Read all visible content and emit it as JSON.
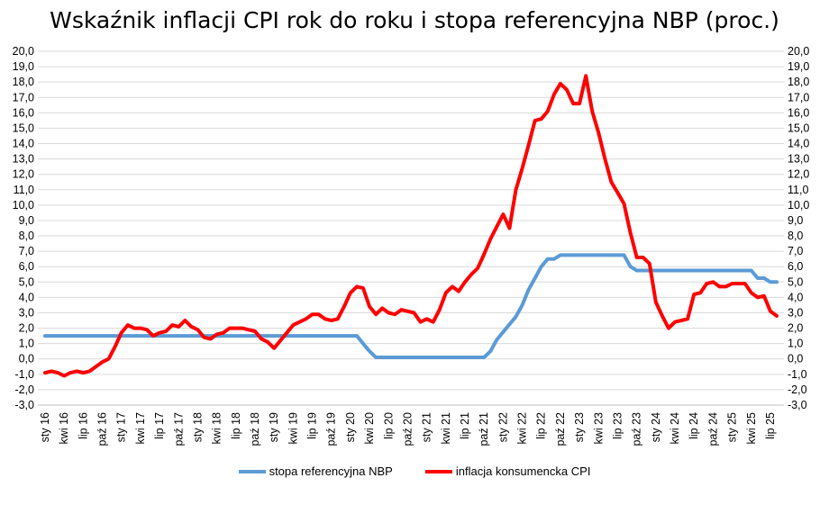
{
  "chart_data": {
    "type": "line",
    "title": "Wskaźnik inflacji CPI rok do roku i stopa referencyjna NBP (proc.)",
    "xlabel": "",
    "ylabel": "",
    "ylim": [
      -3.0,
      20.0
    ],
    "ytick_step": 1.0,
    "y_tick_labels": [
      "-3,0",
      "-2,0",
      "-1,0",
      "0,0",
      "1,0",
      "2,0",
      "3,0",
      "4,0",
      "5,0",
      "6,0",
      "7,0",
      "8,0",
      "9,0",
      "10,0",
      "11,0",
      "12,0",
      "13,0",
      "14,0",
      "15,0",
      "16,0",
      "17,0",
      "18,0",
      "19,0",
      "20,0"
    ],
    "grid": true,
    "dual_y_axis_labels": true,
    "legend_position": "bottom",
    "x": [
      "2016-01",
      "2016-02",
      "2016-03",
      "2016-04",
      "2016-05",
      "2016-06",
      "2016-07",
      "2016-08",
      "2016-09",
      "2016-10",
      "2016-11",
      "2016-12",
      "2017-01",
      "2017-02",
      "2017-03",
      "2017-04",
      "2017-05",
      "2017-06",
      "2017-07",
      "2017-08",
      "2017-09",
      "2017-10",
      "2017-11",
      "2017-12",
      "2018-01",
      "2018-02",
      "2018-03",
      "2018-04",
      "2018-05",
      "2018-06",
      "2018-07",
      "2018-08",
      "2018-09",
      "2018-10",
      "2018-11",
      "2018-12",
      "2019-01",
      "2019-02",
      "2019-03",
      "2019-04",
      "2019-05",
      "2019-06",
      "2019-07",
      "2019-08",
      "2019-09",
      "2019-10",
      "2019-11",
      "2019-12",
      "2020-01",
      "2020-02",
      "2020-03",
      "2020-04",
      "2020-05",
      "2020-06",
      "2020-07",
      "2020-08",
      "2020-09",
      "2020-10",
      "2020-11",
      "2020-12",
      "2021-01",
      "2021-02",
      "2021-03",
      "2021-04",
      "2021-05",
      "2021-06",
      "2021-07",
      "2021-08",
      "2021-09",
      "2021-10",
      "2021-11",
      "2021-12",
      "2022-01",
      "2022-02",
      "2022-03",
      "2022-04",
      "2022-05",
      "2022-06",
      "2022-07",
      "2022-08",
      "2022-09",
      "2022-10",
      "2022-11",
      "2022-12",
      "2023-01",
      "2023-02",
      "2023-03",
      "2023-04",
      "2023-05",
      "2023-06",
      "2023-07",
      "2023-08",
      "2023-09",
      "2023-10",
      "2023-11",
      "2023-12",
      "2024-01",
      "2024-02",
      "2024-03",
      "2024-04",
      "2024-05",
      "2024-06",
      "2024-07",
      "2024-08",
      "2024-09",
      "2024-10",
      "2024-11",
      "2024-12",
      "2025-01",
      "2025-02",
      "2025-03",
      "2025-04",
      "2025-05",
      "2025-06",
      "2025-07",
      "2025-08"
    ],
    "x_tick_labels": [
      "sty 16",
      "kwi 16",
      "lip 16",
      "paź 16",
      "sty 17",
      "kwi 17",
      "lip 17",
      "paź 17",
      "sty 18",
      "kwi 18",
      "lip 18",
      "paź 18",
      "sty 19",
      "kwi 19",
      "lip 19",
      "paź 19",
      "sty 20",
      "kwi 20",
      "lip 20",
      "paź 20",
      "sty 21",
      "kwi 21",
      "lip 21",
      "paź 21",
      "sty 22",
      "kwi 22",
      "lip 22",
      "paź 22",
      "sty 23",
      "kwi 23",
      "lip 23",
      "paź 23",
      "sty 24",
      "kwi 24",
      "lip 24",
      "paź 24",
      "sty 25",
      "kwi 25",
      "lip 25"
    ],
    "x_tick_every": 3,
    "series": [
      {
        "name": "stopa referencyjna NBP",
        "color": "#5b9bd5",
        "values": [
          1.5,
          1.5,
          1.5,
          1.5,
          1.5,
          1.5,
          1.5,
          1.5,
          1.5,
          1.5,
          1.5,
          1.5,
          1.5,
          1.5,
          1.5,
          1.5,
          1.5,
          1.5,
          1.5,
          1.5,
          1.5,
          1.5,
          1.5,
          1.5,
          1.5,
          1.5,
          1.5,
          1.5,
          1.5,
          1.5,
          1.5,
          1.5,
          1.5,
          1.5,
          1.5,
          1.5,
          1.5,
          1.5,
          1.5,
          1.5,
          1.5,
          1.5,
          1.5,
          1.5,
          1.5,
          1.5,
          1.5,
          1.5,
          1.5,
          1.5,
          1.0,
          0.5,
          0.1,
          0.1,
          0.1,
          0.1,
          0.1,
          0.1,
          0.1,
          0.1,
          0.1,
          0.1,
          0.1,
          0.1,
          0.1,
          0.1,
          0.1,
          0.1,
          0.1,
          0.1,
          0.5,
          1.25,
          1.75,
          2.25,
          2.75,
          3.5,
          4.5,
          5.25,
          6.0,
          6.5,
          6.5,
          6.75,
          6.75,
          6.75,
          6.75,
          6.75,
          6.75,
          6.75,
          6.75,
          6.75,
          6.75,
          6.75,
          6.0,
          5.75,
          5.75,
          5.75,
          5.75,
          5.75,
          5.75,
          5.75,
          5.75,
          5.75,
          5.75,
          5.75,
          5.75,
          5.75,
          5.75,
          5.75,
          5.75,
          5.75,
          5.75,
          5.75,
          5.25,
          5.25,
          5.0,
          5.0
        ]
      },
      {
        "name": "inflacja konsumencka CPI",
        "color": "#ff0000",
        "values": [
          -0.9,
          -0.8,
          -0.9,
          -1.1,
          -0.9,
          -0.8,
          -0.9,
          -0.8,
          -0.5,
          -0.2,
          0.0,
          0.8,
          1.7,
          2.2,
          2.0,
          2.0,
          1.9,
          1.5,
          1.7,
          1.8,
          2.2,
          2.1,
          2.5,
          2.1,
          1.9,
          1.4,
          1.3,
          1.6,
          1.7,
          2.0,
          2.0,
          2.0,
          1.9,
          1.8,
          1.3,
          1.1,
          0.7,
          1.2,
          1.7,
          2.2,
          2.4,
          2.6,
          2.9,
          2.9,
          2.6,
          2.5,
          2.6,
          3.4,
          4.3,
          4.7,
          4.6,
          3.4,
          2.9,
          3.3,
          3.0,
          2.9,
          3.2,
          3.1,
          3.0,
          2.4,
          2.6,
          2.4,
          3.2,
          4.3,
          4.7,
          4.4,
          5.0,
          5.5,
          5.9,
          6.8,
          7.8,
          8.6,
          9.4,
          8.5,
          11.0,
          12.4,
          13.9,
          15.5,
          15.6,
          16.1,
          17.2,
          17.9,
          17.5,
          16.6,
          16.6,
          18.4,
          16.1,
          14.7,
          13.0,
          11.5,
          10.8,
          10.1,
          8.2,
          6.6,
          6.6,
          6.2,
          3.7,
          2.8,
          2.0,
          2.4,
          2.5,
          2.6,
          4.2,
          4.3,
          4.9,
          5.0,
          4.7,
          4.7,
          4.9,
          4.9,
          4.9,
          4.3,
          4.0,
          4.1,
          3.1,
          2.8
        ]
      }
    ]
  }
}
